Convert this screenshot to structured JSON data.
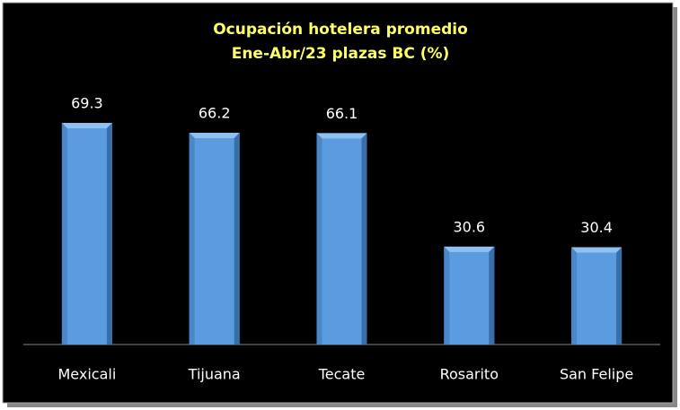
{
  "chart_data": {
    "type": "bar",
    "title": "Ocupación hotelera promedio",
    "subtitle": "Ene-Abr/23 plazas BC (%)",
    "categories": [
      "Mexicali",
      "Tijuana",
      "Tecate",
      "Rosarito",
      "San Felipe"
    ],
    "values": [
      69.3,
      66.2,
      66.1,
      30.6,
      30.4
    ],
    "color": "#5b9be0"
  }
}
